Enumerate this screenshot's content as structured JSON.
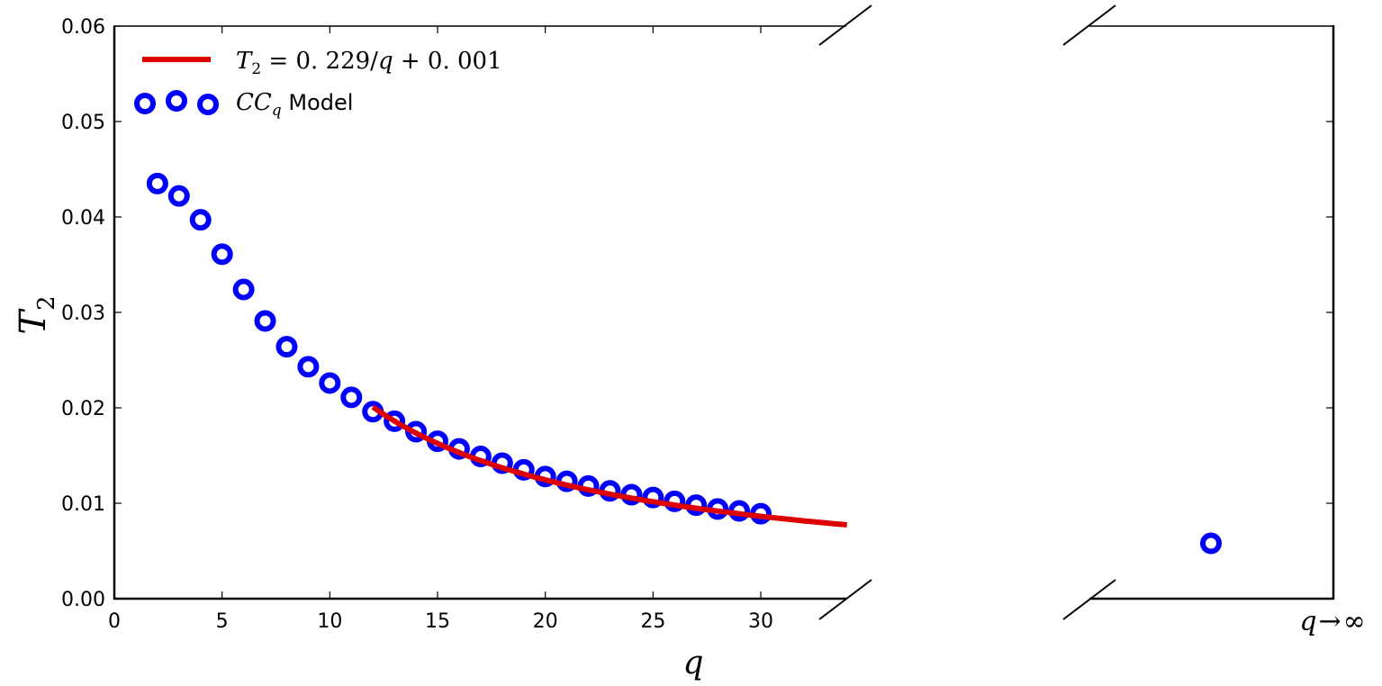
{
  "chart_data": {
    "type": "scatter",
    "title": "",
    "xlabel": "q",
    "ylabel": "T_2",
    "ylim": [
      0.0,
      0.06
    ],
    "xlim_left_panel": [
      0,
      34
    ],
    "broken_x_axis": true,
    "right_panel_label": "q → ∞",
    "grid": false,
    "legend_position": "upper left",
    "x_ticks": [
      "0",
      "5",
      "10",
      "15",
      "20",
      "25",
      "30"
    ],
    "y_ticks": [
      "0.00",
      "0.01",
      "0.02",
      "0.03",
      "0.04",
      "0.05",
      "0.06"
    ],
    "series": [
      {
        "name": "CC_q Model",
        "kind": "scatter",
        "marker": "open-circle",
        "color": "#0000ff",
        "x": [
          2,
          3,
          4,
          5,
          6,
          7,
          8,
          9,
          10,
          11,
          12,
          13,
          14,
          15,
          16,
          17,
          18,
          19,
          20,
          21,
          22,
          23,
          24,
          25,
          26,
          27,
          28,
          29,
          30
        ],
        "values": [
          0.0435,
          0.0422,
          0.0397,
          0.0361,
          0.0324,
          0.0291,
          0.0264,
          0.0243,
          0.0226,
          0.0211,
          0.0196,
          0.0186,
          0.0175,
          0.0165,
          0.0157,
          0.0149,
          0.0142,
          0.0135,
          0.0128,
          0.0123,
          0.0118,
          0.0113,
          0.0109,
          0.0106,
          0.0102,
          0.0098,
          0.0094,
          0.0092,
          0.0089
        ],
        "limit_point": {
          "x": "q → ∞",
          "value": 0.0058
        }
      },
      {
        "name": "T_2 = 0.229/q + 0.001",
        "kind": "line",
        "color": "#dd0000",
        "formula": {
          "a": 0.229,
          "b": 0.001
        },
        "x_range": [
          12,
          34
        ]
      }
    ]
  },
  "legend": {
    "fit_label": {
      "lhs": "T",
      "sub": "2",
      "rhs": " = 0. 229/",
      "q": "q",
      "tail": " + 0. 001"
    },
    "model_label": {
      "cc": "CC",
      "sub": "q",
      "rest": " Model"
    }
  },
  "axes": {
    "xlabel": "q",
    "ylabel_main": "T",
    "ylabel_sub": "2",
    "right_label_q": "q",
    "right_label_arrow": "→",
    "right_label_inf": "∞"
  }
}
